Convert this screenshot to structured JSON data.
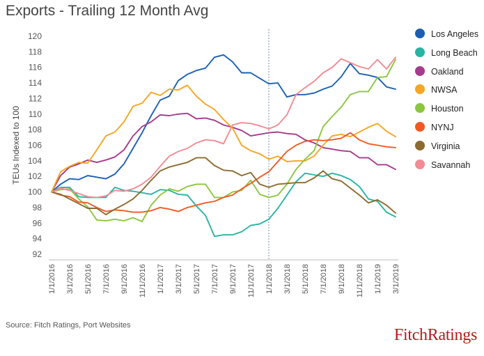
{
  "title": "Exports - Trailing 12 Month Avg",
  "source": "Source:  Fitch Ratings, Port Websites",
  "brand": "FitchRatings",
  "chart_data": {
    "type": "line",
    "ylabel": "TEUs Indexed to 100",
    "xlabel": "",
    "ylim": [
      92,
      120
    ],
    "ytick_step": 2,
    "y_ticks": [
      "92",
      "94",
      "96",
      "98",
      "100",
      "102",
      "104",
      "106",
      "108",
      "110",
      "112",
      "114",
      "116",
      "118",
      "120"
    ],
    "x_ticks": [
      "1/1/2016",
      "3/1/2016",
      "5/1/2016",
      "7/1/2016",
      "9/1/2016",
      "11/1/2016",
      "1/1/2017",
      "3/1/2017",
      "5/1/2017",
      "7/1/2017",
      "9/1/2017",
      "11/1/2017",
      "1/1/2018",
      "3/1/2018",
      "5/1/2018",
      "7/1/2018",
      "9/1/2018",
      "11/1/2018",
      "1/1/2019",
      "3/1/2019"
    ],
    "x_months": 39,
    "reference_line_month": 24,
    "legend_position": "right",
    "grid": false,
    "series": [
      {
        "name": "Los Angeles",
        "color": "#1a5fb4",
        "values": [
          100,
          101,
          101.7,
          101.6,
          102.1,
          101.9,
          101.7,
          102.3,
          103.6,
          105.6,
          107.6,
          109.8,
          111.8,
          112.3,
          114.3,
          115.1,
          115.6,
          115.9,
          117.3,
          117.6,
          116.7,
          115.3,
          115.3,
          114.6,
          113.9,
          114.0,
          112.2,
          112.5,
          112.5,
          112.7,
          113.2,
          113.6,
          114.8,
          116.5,
          115.2,
          115.0,
          114.7,
          113.5,
          113.2
        ]
      },
      {
        "name": "Long Beach",
        "color": "#26b5a2",
        "values": [
          100,
          100.6,
          100.6,
          99.4,
          99.3,
          99.3,
          99.3,
          100.6,
          100.2,
          100.1,
          99.9,
          99.7,
          100.3,
          100.2,
          99.7,
          99.6,
          98.2,
          97.0,
          94.3,
          94.5,
          94.5,
          94.9,
          95.7,
          95.9,
          96.5,
          97.9,
          99.6,
          101.3,
          102.4,
          102.2,
          102.0,
          102.4,
          102.1,
          101.6,
          100.7,
          99.1,
          98.8,
          97.4,
          96.8
        ]
      },
      {
        "name": "Oakland",
        "color": "#a63a8c",
        "values": [
          100,
          102.1,
          103.2,
          103.6,
          104.1,
          103.8,
          104.1,
          104.5,
          105.4,
          107.2,
          108.4,
          109.0,
          109.9,
          109.8,
          110.0,
          110.1,
          109.4,
          109.5,
          109.2,
          108.6,
          108.3,
          107.9,
          107.2,
          107.4,
          107.6,
          107.7,
          107.5,
          107.4,
          106.7,
          106.3,
          105.7,
          105.5,
          105.3,
          105.2,
          104.4,
          104.4,
          103.5,
          103.5,
          102.9
        ]
      },
      {
        "name": "NWSA",
        "color": "#f5a623",
        "values": [
          100,
          102.6,
          103.3,
          103.8,
          103.7,
          105.4,
          107.2,
          107.7,
          109.0,
          111.0,
          111.4,
          112.8,
          112.4,
          113.2,
          113.1,
          113.7,
          112.3,
          111.3,
          110.6,
          109.3,
          108.2,
          106.0,
          105.3,
          104.9,
          104.2,
          104.6,
          103.9,
          104.0,
          104.0,
          104.6,
          106.0,
          107.2,
          107.4,
          107.1,
          107.7,
          108.3,
          108.8,
          107.8,
          107.1
        ]
      },
      {
        "name": "Houston",
        "color": "#8cc63f",
        "values": [
          100,
          100.3,
          100.4,
          99.1,
          98.1,
          96.4,
          96.3,
          96.5,
          96.3,
          96.7,
          96.2,
          98.3,
          99.6,
          100.4,
          100.1,
          100.7,
          101.0,
          101.0,
          99.3,
          99.3,
          100.0,
          100.2,
          101.5,
          99.7,
          99.3,
          99.6,
          101.0,
          102.9,
          104.2,
          105.3,
          108.4,
          109.7,
          110.9,
          112.5,
          112.9,
          112.9,
          114.7,
          114.8,
          117.0
        ]
      },
      {
        "name": "NYNJ",
        "color": "#f05a22",
        "values": [
          100,
          99.6,
          99.4,
          98.7,
          98.6,
          98.0,
          97.5,
          97.7,
          97.6,
          97.4,
          97.4,
          97.6,
          98.0,
          97.8,
          97.5,
          98.0,
          98.3,
          98.6,
          98.8,
          99.3,
          99.6,
          100.4,
          101.1,
          101.9,
          102.6,
          103.9,
          105.2,
          106.0,
          106.5,
          106.7,
          106.6,
          106.7,
          106.9,
          107.6,
          106.7,
          106.2,
          106.0,
          105.8,
          105.7
        ]
      },
      {
        "name": "Virginia",
        "color": "#8b6b2e",
        "values": [
          100,
          99.7,
          99.1,
          98.5,
          97.9,
          97.9,
          97.1,
          97.8,
          98.4,
          99.1,
          100.2,
          101.5,
          102.7,
          103.2,
          103.5,
          103.8,
          104.4,
          104.4,
          103.4,
          102.8,
          102.7,
          102.1,
          102.5,
          101.0,
          100.6,
          101.0,
          101.1,
          101.2,
          101.2,
          101.8,
          102.7,
          101.7,
          101.4,
          100.5,
          99.6,
          98.6,
          99.0,
          98.3,
          97.3
        ]
      },
      {
        "name": "Savannah",
        "color": "#f28b93",
        "values": [
          100,
          100.5,
          100.2,
          99.8,
          99.4,
          99.3,
          99.5,
          100.2,
          100.1,
          100.4,
          101.0,
          101.9,
          103.3,
          104.6,
          105.2,
          105.6,
          106.3,
          106.7,
          106.6,
          106.2,
          108.6,
          108.9,
          108.8,
          108.5,
          108.1,
          108.6,
          109.9,
          112.5,
          113.4,
          114.2,
          115.3,
          116.0,
          117.1,
          116.6,
          116.1,
          115.8,
          117.0,
          115.8,
          117.3
        ]
      }
    ]
  }
}
